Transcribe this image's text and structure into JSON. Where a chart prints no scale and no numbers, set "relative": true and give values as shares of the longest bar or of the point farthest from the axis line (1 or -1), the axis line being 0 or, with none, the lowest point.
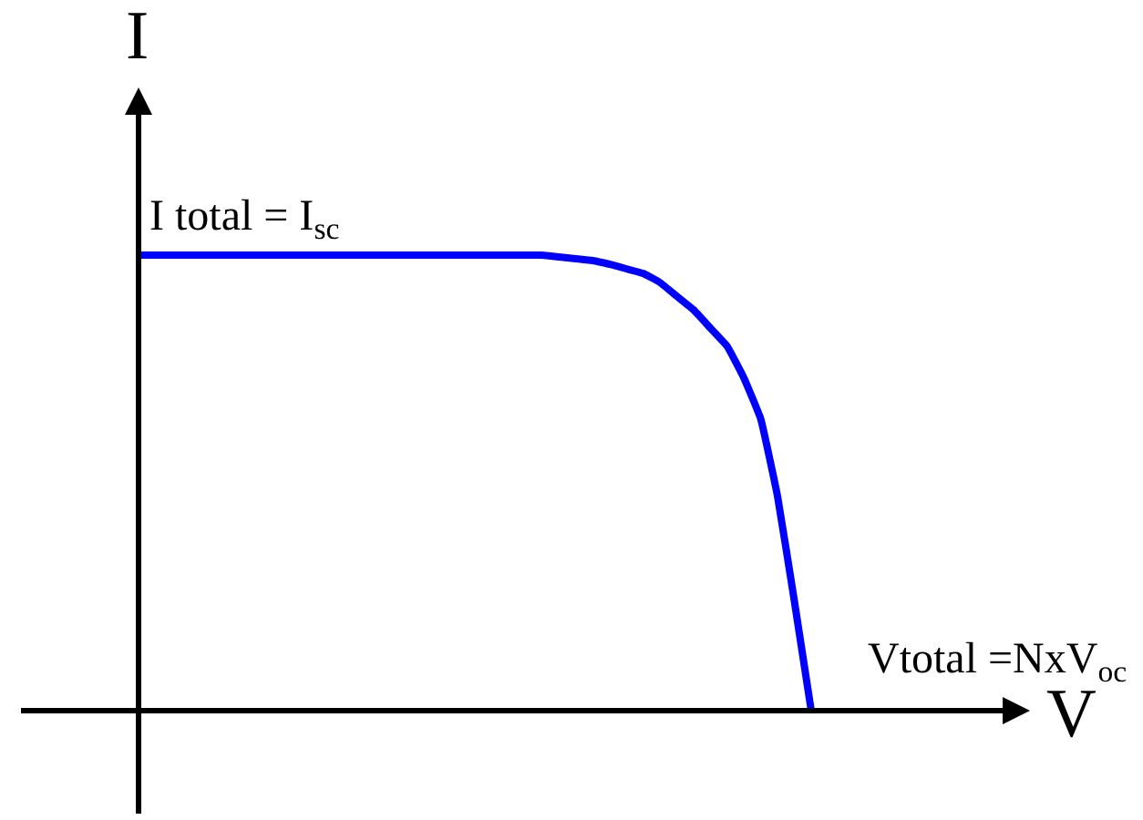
{
  "chart_data": {
    "type": "line",
    "relative": true,
    "xlabel": "V",
    "ylabel": "I",
    "categories": [
      null,
      null,
      null,
      null,
      null,
      null,
      null,
      null,
      null,
      null,
      null,
      null,
      null,
      null,
      null,
      null,
      null,
      null,
      null,
      null,
      null,
      null,
      null,
      null,
      null,
      null,
      null,
      null,
      null,
      null,
      null,
      null,
      null,
      null,
      null,
      null,
      null,
      null,
      null,
      null,
      null
    ],
    "values": [
      1.0,
      1.0,
      1.0,
      1.0,
      1.0,
      1.0,
      1.0,
      1.0,
      1.0,
      1.0,
      1.0,
      1.0,
      1.0,
      1.0,
      1.0,
      1.0,
      1.0,
      1.0,
      1.0,
      1.0,
      1.0,
      1.0,
      1.0,
      1.0,
      1.0,
      0.996,
      0.992,
      0.988,
      0.98,
      0.97,
      0.96,
      0.94,
      0.91,
      0.88,
      0.84,
      0.8,
      0.73,
      0.64,
      0.47,
      0.24,
      0
    ],
    "color": "#0000ff",
    "annotations": [
      "I total = I$_{sc}$",
      "Vtotal =NxV$_{oc}$"
    ],
    "legend": false
  }
}
